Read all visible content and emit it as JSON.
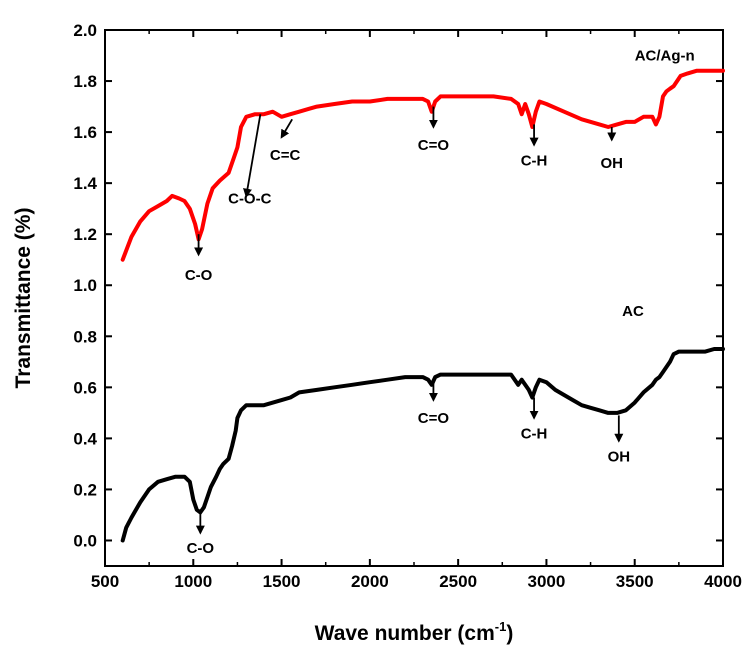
{
  "chart_data": {
    "type": "line",
    "xlabel": "Wave number (cm",
    "xlabel_sup": "-1",
    "xlabel_close": ")",
    "ylabel": "Transmittance (%)",
    "xlim": [
      500,
      4000
    ],
    "ylim": [
      -0.1,
      2.0
    ],
    "x_ticks": [
      500,
      1000,
      1500,
      2000,
      2500,
      3000,
      3500,
      4000
    ],
    "x_tick_labels": [
      "500",
      "1000",
      "1500",
      "2000",
      "2500",
      "3000",
      "3500",
      "4000"
    ],
    "y_ticks": [
      0.0,
      0.2,
      0.4,
      0.6,
      0.8,
      1.0,
      1.2,
      1.4,
      1.6,
      1.8,
      2.0
    ],
    "y_tick_labels": [
      "0.0",
      "0.2",
      "0.4",
      "0.6",
      "0.8",
      "1.0",
      "1.2",
      "1.4",
      "1.6",
      "1.8",
      "2.0"
    ],
    "grid": false,
    "series": [
      {
        "name": "AC/Ag-n",
        "color": "#ff0000",
        "x": [
          600,
          650,
          700,
          750,
          800,
          850,
          880,
          920,
          950,
          980,
          1010,
          1030,
          1050,
          1080,
          1110,
          1150,
          1200,
          1230,
          1250,
          1270,
          1300,
          1350,
          1400,
          1450,
          1500,
          1550,
          1600,
          1650,
          1700,
          1800,
          1900,
          2000,
          2100,
          2200,
          2300,
          2330,
          2350,
          2370,
          2400,
          2500,
          2600,
          2700,
          2800,
          2840,
          2860,
          2880,
          2900,
          2920,
          2940,
          2960,
          3000,
          3100,
          3200,
          3300,
          3350,
          3400,
          3450,
          3500,
          3550,
          3600,
          3620,
          3640,
          3660,
          3680,
          3700,
          3720,
          3760,
          3800,
          3850,
          3900,
          3950,
          4000
        ],
        "values": [
          1.1,
          1.19,
          1.25,
          1.29,
          1.31,
          1.33,
          1.35,
          1.34,
          1.33,
          1.3,
          1.24,
          1.18,
          1.22,
          1.32,
          1.38,
          1.41,
          1.44,
          1.5,
          1.54,
          1.62,
          1.66,
          1.67,
          1.67,
          1.68,
          1.66,
          1.67,
          1.68,
          1.69,
          1.7,
          1.71,
          1.72,
          1.72,
          1.73,
          1.73,
          1.73,
          1.72,
          1.68,
          1.72,
          1.74,
          1.74,
          1.74,
          1.74,
          1.73,
          1.71,
          1.67,
          1.71,
          1.67,
          1.62,
          1.68,
          1.72,
          1.71,
          1.68,
          1.65,
          1.63,
          1.62,
          1.63,
          1.64,
          1.64,
          1.66,
          1.66,
          1.63,
          1.66,
          1.74,
          1.76,
          1.77,
          1.78,
          1.82,
          1.83,
          1.84,
          1.84,
          1.84,
          1.84
        ]
      },
      {
        "name": "AC",
        "color": "#000000",
        "x": [
          600,
          620,
          650,
          700,
          750,
          800,
          850,
          900,
          950,
          980,
          1000,
          1020,
          1040,
          1060,
          1080,
          1100,
          1130,
          1150,
          1170,
          1200,
          1220,
          1240,
          1250,
          1270,
          1300,
          1400,
          1500,
          1550,
          1600,
          1700,
          1800,
          1900,
          2000,
          2100,
          2200,
          2300,
          2330,
          2350,
          2370,
          2400,
          2500,
          2600,
          2700,
          2800,
          2840,
          2860,
          2880,
          2900,
          2920,
          2940,
          2960,
          3000,
          3050,
          3100,
          3150,
          3200,
          3250,
          3300,
          3350,
          3400,
          3450,
          3500,
          3550,
          3600,
          3620,
          3640,
          3660,
          3700,
          3720,
          3750,
          3800,
          3850,
          3900,
          3950,
          4000
        ],
        "values": [
          0.0,
          0.05,
          0.09,
          0.15,
          0.2,
          0.23,
          0.24,
          0.25,
          0.25,
          0.23,
          0.16,
          0.12,
          0.11,
          0.13,
          0.17,
          0.21,
          0.25,
          0.28,
          0.3,
          0.32,
          0.37,
          0.43,
          0.48,
          0.51,
          0.53,
          0.53,
          0.55,
          0.56,
          0.58,
          0.59,
          0.6,
          0.61,
          0.62,
          0.63,
          0.64,
          0.64,
          0.63,
          0.61,
          0.64,
          0.65,
          0.65,
          0.65,
          0.65,
          0.65,
          0.61,
          0.63,
          0.61,
          0.59,
          0.56,
          0.6,
          0.63,
          0.62,
          0.59,
          0.57,
          0.55,
          0.53,
          0.52,
          0.51,
          0.5,
          0.5,
          0.51,
          0.54,
          0.58,
          0.61,
          0.63,
          0.64,
          0.66,
          0.7,
          0.73,
          0.74,
          0.74,
          0.74,
          0.74,
          0.75,
          0.75
        ]
      }
    ],
    "series_labels": [
      {
        "text": "AC/Ag-n",
        "x": 3670,
        "y": 1.88
      },
      {
        "text": "AC",
        "x": 3490,
        "y": 0.88
      }
    ],
    "annotations": [
      {
        "text": "C-O",
        "from": [
          1030,
          1.2
        ],
        "to": [
          1030,
          1.12
        ],
        "label_at": [
          1030,
          1.02
        ]
      },
      {
        "text": "C-O-C",
        "from": [
          1380,
          1.67
        ],
        "to": [
          1300,
          1.35
        ],
        "label_at": [
          1320,
          1.32
        ]
      },
      {
        "text": "C=C",
        "from": [
          1560,
          1.65
        ],
        "to": [
          1500,
          1.58
        ],
        "label_at": [
          1520,
          1.49
        ]
      },
      {
        "text": "C=O",
        "from": [
          2360,
          1.7
        ],
        "to": [
          2360,
          1.62
        ],
        "label_at": [
          2360,
          1.53
        ]
      },
      {
        "text": "C-H",
        "from": [
          2930,
          1.63
        ],
        "to": [
          2930,
          1.55
        ],
        "label_at": [
          2930,
          1.47
        ]
      },
      {
        "text": "OH",
        "from": [
          3370,
          1.62
        ],
        "to": [
          3370,
          1.57
        ],
        "label_at": [
          3370,
          1.46
        ]
      },
      {
        "text": "C=O",
        "from": [
          2360,
          0.62
        ],
        "to": [
          2360,
          0.55
        ],
        "label_at": [
          2360,
          0.46
        ]
      },
      {
        "text": "C-H",
        "from": [
          2930,
          0.56
        ],
        "to": [
          2930,
          0.48
        ],
        "label_at": [
          2930,
          0.4
        ]
      },
      {
        "text": "OH",
        "from": [
          3410,
          0.49
        ],
        "to": [
          3410,
          0.39
        ],
        "label_at": [
          3410,
          0.31
        ]
      },
      {
        "text": "C-O",
        "from": [
          1040,
          0.11
        ],
        "to": [
          1040,
          0.03
        ],
        "label_at": [
          1040,
          -0.05
        ]
      }
    ]
  }
}
